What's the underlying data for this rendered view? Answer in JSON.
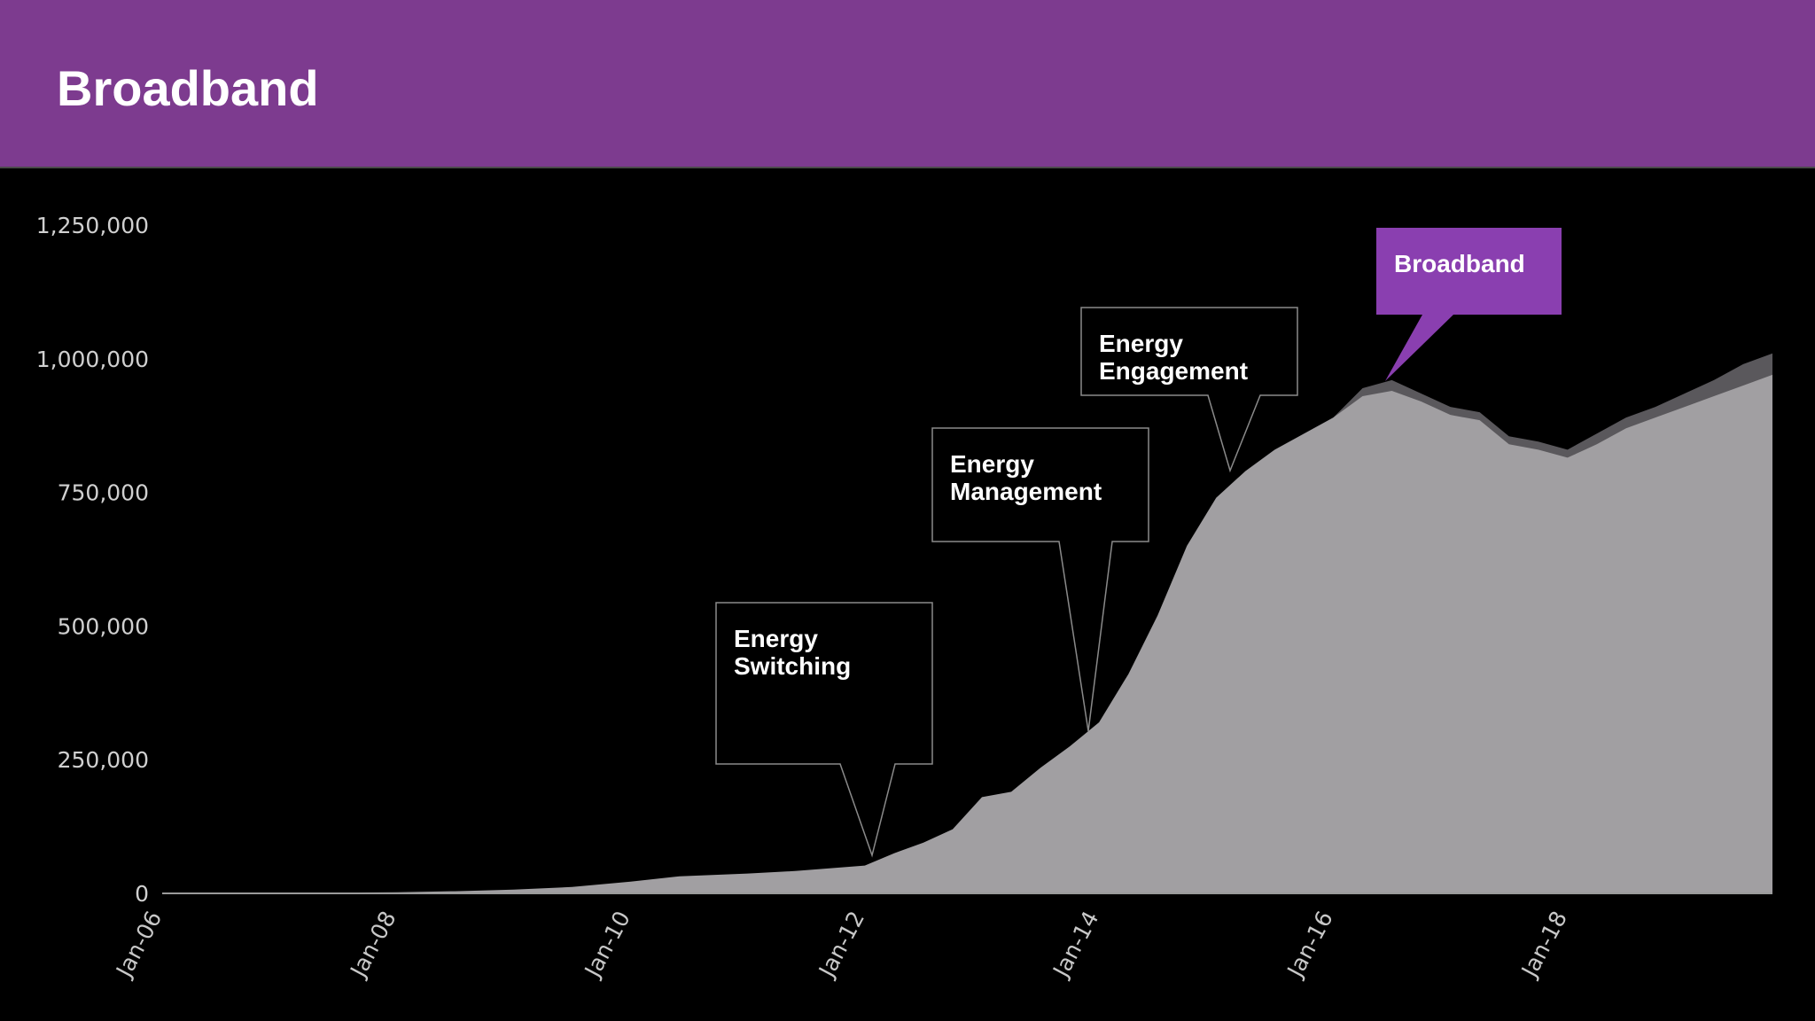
{
  "header": {
    "title": "Broadband"
  },
  "colors": {
    "header_bg": "#7d3b8f",
    "background": "#000000",
    "area_fill": "#a19fa2",
    "area_dark_band": "#5a585c",
    "callout_border": "#8a8a8a",
    "broadband_callout": "#8a3fb0"
  },
  "chart_data": {
    "type": "area",
    "ylim": [
      0,
      1250000
    ],
    "y_ticks": [
      "0",
      "250,000",
      "500,000",
      "750,000",
      "1,000,000",
      "1,250,000"
    ],
    "y_tick_values": [
      0,
      250000,
      500000,
      750000,
      1000000,
      1250000
    ],
    "x_ticks": [
      "Jan-06",
      "Jan-08",
      "Jan-10",
      "Jan-12",
      "Jan-14",
      "Jan-16",
      "Jan-18"
    ],
    "x_tick_values": [
      "2006-01",
      "2008-01",
      "2010-01",
      "2012-01",
      "2014-01",
      "2016-01",
      "2018-01"
    ],
    "xlim": [
      "2006-01",
      "2019-10"
    ],
    "grid": false,
    "series": [
      {
        "x": [
          "2006-01",
          "2007-01",
          "2008-01",
          "2008-07",
          "2009-01",
          "2009-07",
          "2010-01",
          "2010-06",
          "2011-01",
          "2011-06",
          "2012-01",
          "2012-04",
          "2012-07",
          "2012-10",
          "2013-01",
          "2013-04",
          "2013-07",
          "2013-10",
          "2014-01",
          "2014-04",
          "2014-07",
          "2014-10",
          "2015-01",
          "2015-04",
          "2015-07",
          "2015-10",
          "2016-01",
          "2016-04",
          "2016-07",
          "2016-10",
          "2017-01",
          "2017-04",
          "2017-07",
          "2017-10",
          "2018-01",
          "2018-04",
          "2018-07",
          "2018-10",
          "2019-01",
          "2019-04",
          "2019-07",
          "2019-10"
        ],
        "values": [
          0,
          1000,
          2000,
          4000,
          7000,
          12000,
          22000,
          32000,
          37000,
          42000,
          52000,
          75000,
          95000,
          120000,
          180000,
          190000,
          235000,
          275000,
          320000,
          410000,
          520000,
          650000,
          740000,
          790000,
          830000,
          860000,
          890000,
          930000,
          940000,
          920000,
          895000,
          885000,
          840000,
          830000,
          815000,
          840000,
          870000,
          890000,
          910000,
          930000,
          950000,
          970000
        ]
      },
      {
        "x": [
          "2016-01",
          "2016-04",
          "2016-07",
          "2016-10",
          "2017-01",
          "2017-04",
          "2017-07",
          "2017-10",
          "2018-01",
          "2018-04",
          "2018-07",
          "2018-10",
          "2019-01",
          "2019-04",
          "2019-07",
          "2019-10"
        ],
        "values": [
          890000,
          945000,
          960000,
          935000,
          910000,
          900000,
          855000,
          845000,
          830000,
          860000,
          890000,
          910000,
          935000,
          960000,
          990000,
          1010000
        ]
      }
    ],
    "annotations": [
      {
        "label_lines": [
          "Energy",
          "Switching"
        ],
        "x": "2012-01",
        "y": 52000,
        "style": "outline"
      },
      {
        "label_lines": [
          "Energy",
          "Management"
        ],
        "x": "2013-12",
        "y": 310000,
        "style": "outline"
      },
      {
        "label_lines": [
          "Energy",
          "Engagement"
        ],
        "x": "2014-12",
        "y": 790000,
        "style": "outline"
      },
      {
        "label_lines": [
          "Broadband"
        ],
        "x": "2016-04",
        "y": 950000,
        "style": "filled"
      }
    ]
  }
}
